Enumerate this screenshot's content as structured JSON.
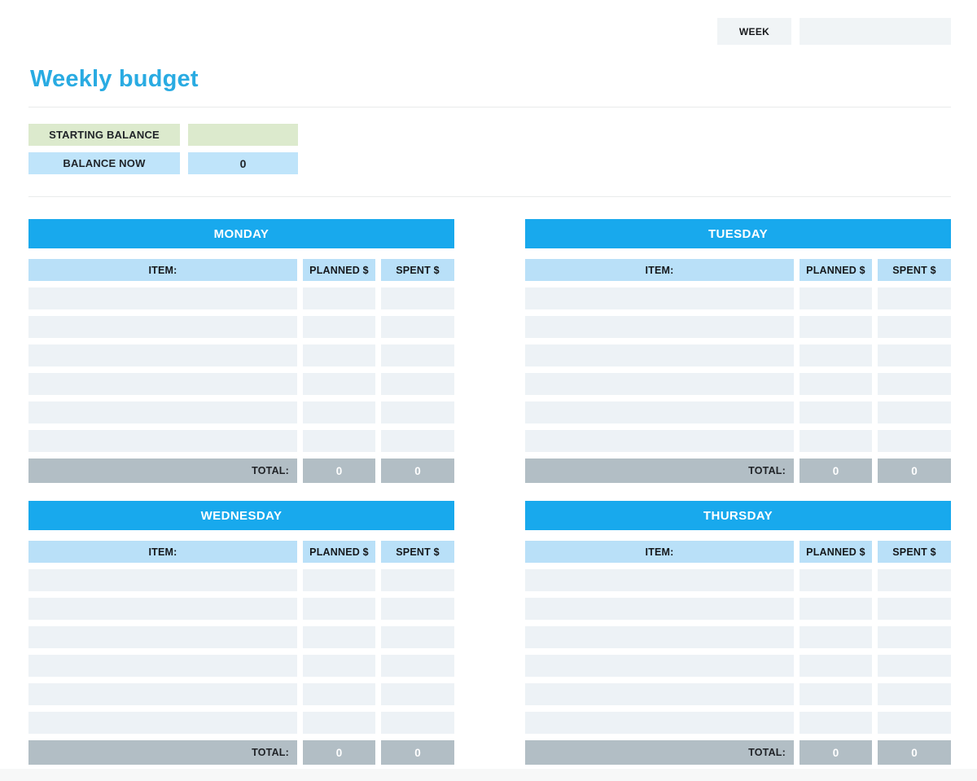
{
  "week": {
    "label": "WEEK",
    "value": ""
  },
  "title": "Weekly budget",
  "balance": {
    "starting_label": "STARTING BALANCE",
    "starting_value": "",
    "now_label": "BALANCE NOW",
    "now_value": "0"
  },
  "columns": {
    "item": "ITEM:",
    "planned": "PLANNED $",
    "spent": "SPENT $",
    "total": "TOTAL:"
  },
  "days": [
    {
      "name": "MONDAY",
      "empty_rows": 6,
      "total_planned": "0",
      "total_spent": "0"
    },
    {
      "name": "TUESDAY",
      "empty_rows": 6,
      "total_planned": "0",
      "total_spent": "0"
    },
    {
      "name": "WEDNESDAY",
      "empty_rows": 6,
      "total_planned": "0",
      "total_spent": "0"
    },
    {
      "name": "THURSDAY",
      "empty_rows": 6,
      "total_planned": "0",
      "total_spent": "0"
    }
  ],
  "colors": {
    "title_blue": "#29ABE2",
    "day_header_blue": "#18A9ED",
    "column_header_blue": "#B9E0F8",
    "balance_green": "#DCEACD",
    "balance_blue": "#BFE4FA",
    "row_gray": "#EDF2F6",
    "total_gray": "#B2BEC5",
    "week_box_gray": "#F0F4F6"
  }
}
